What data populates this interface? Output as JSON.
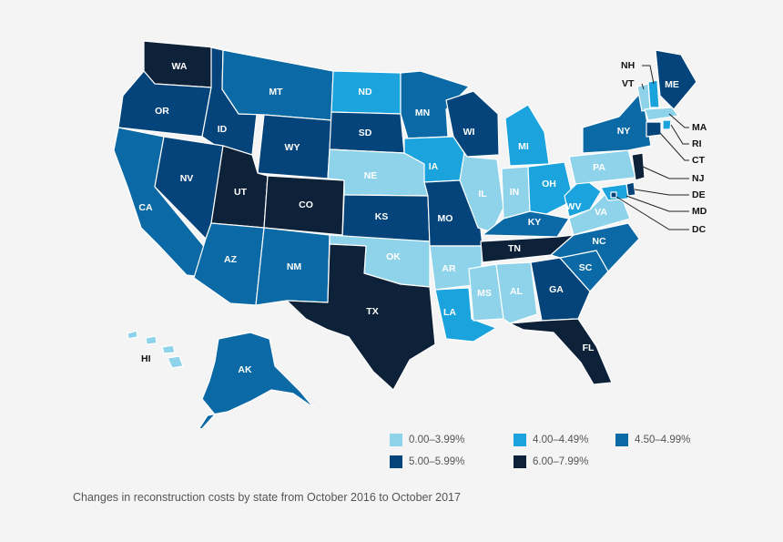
{
  "caption": "Changes in reconstruction costs by state from October 2016 to October 2017",
  "legend": [
    {
      "label": "0.00–3.99%",
      "color": "#8fd3ea"
    },
    {
      "label": "4.00–4.49%",
      "color": "#1ba3dd"
    },
    {
      "label": "4.50–4.99%",
      "color": "#0b6aa5"
    },
    {
      "label": "5.00–5.99%",
      "color": "#05447a"
    },
    {
      "label": "6.00–7.99%",
      "color": "#0d2238"
    }
  ],
  "states": [
    {
      "abbr": "WA",
      "bin": 4
    },
    {
      "abbr": "OR",
      "bin": 3
    },
    {
      "abbr": "CA",
      "bin": 2
    },
    {
      "abbr": "ID",
      "bin": 3
    },
    {
      "abbr": "NV",
      "bin": 3
    },
    {
      "abbr": "MT",
      "bin": 2
    },
    {
      "abbr": "WY",
      "bin": 3
    },
    {
      "abbr": "UT",
      "bin": 4
    },
    {
      "abbr": "AZ",
      "bin": 2
    },
    {
      "abbr": "CO",
      "bin": 4
    },
    {
      "abbr": "NM",
      "bin": 2
    },
    {
      "abbr": "ND",
      "bin": 1
    },
    {
      "abbr": "SD",
      "bin": 3
    },
    {
      "abbr": "NE",
      "bin": 0
    },
    {
      "abbr": "KS",
      "bin": 3
    },
    {
      "abbr": "OK",
      "bin": 0
    },
    {
      "abbr": "TX",
      "bin": 4
    },
    {
      "abbr": "MN",
      "bin": 2
    },
    {
      "abbr": "IA",
      "bin": 1
    },
    {
      "abbr": "MO",
      "bin": 3
    },
    {
      "abbr": "AR",
      "bin": 0
    },
    {
      "abbr": "LA",
      "bin": 1
    },
    {
      "abbr": "WI",
      "bin": 3
    },
    {
      "abbr": "IL",
      "bin": 0
    },
    {
      "abbr": "MI",
      "bin": 1
    },
    {
      "abbr": "IN",
      "bin": 0
    },
    {
      "abbr": "OH",
      "bin": 1
    },
    {
      "abbr": "KY",
      "bin": 2
    },
    {
      "abbr": "TN",
      "bin": 4
    },
    {
      "abbr": "MS",
      "bin": 0
    },
    {
      "abbr": "AL",
      "bin": 0
    },
    {
      "abbr": "GA",
      "bin": 3
    },
    {
      "abbr": "FL",
      "bin": 4
    },
    {
      "abbr": "SC",
      "bin": 2
    },
    {
      "abbr": "NC",
      "bin": 2
    },
    {
      "abbr": "VA",
      "bin": 0
    },
    {
      "abbr": "WV",
      "bin": 1
    },
    {
      "abbr": "PA",
      "bin": 0
    },
    {
      "abbr": "NY",
      "bin": 2
    },
    {
      "abbr": "ME",
      "bin": 3
    },
    {
      "abbr": "NH",
      "bin": 1
    },
    {
      "abbr": "VT",
      "bin": 0
    },
    {
      "abbr": "MA",
      "bin": 0
    },
    {
      "abbr": "RI",
      "bin": 1
    },
    {
      "abbr": "CT",
      "bin": 3
    },
    {
      "abbr": "NJ",
      "bin": 4
    },
    {
      "abbr": "DE",
      "bin": 3
    },
    {
      "abbr": "MD",
      "bin": 1
    },
    {
      "abbr": "DC",
      "bin": 3
    },
    {
      "abbr": "AK",
      "bin": 2
    },
    {
      "abbr": "HI",
      "bin": 0
    }
  ]
}
